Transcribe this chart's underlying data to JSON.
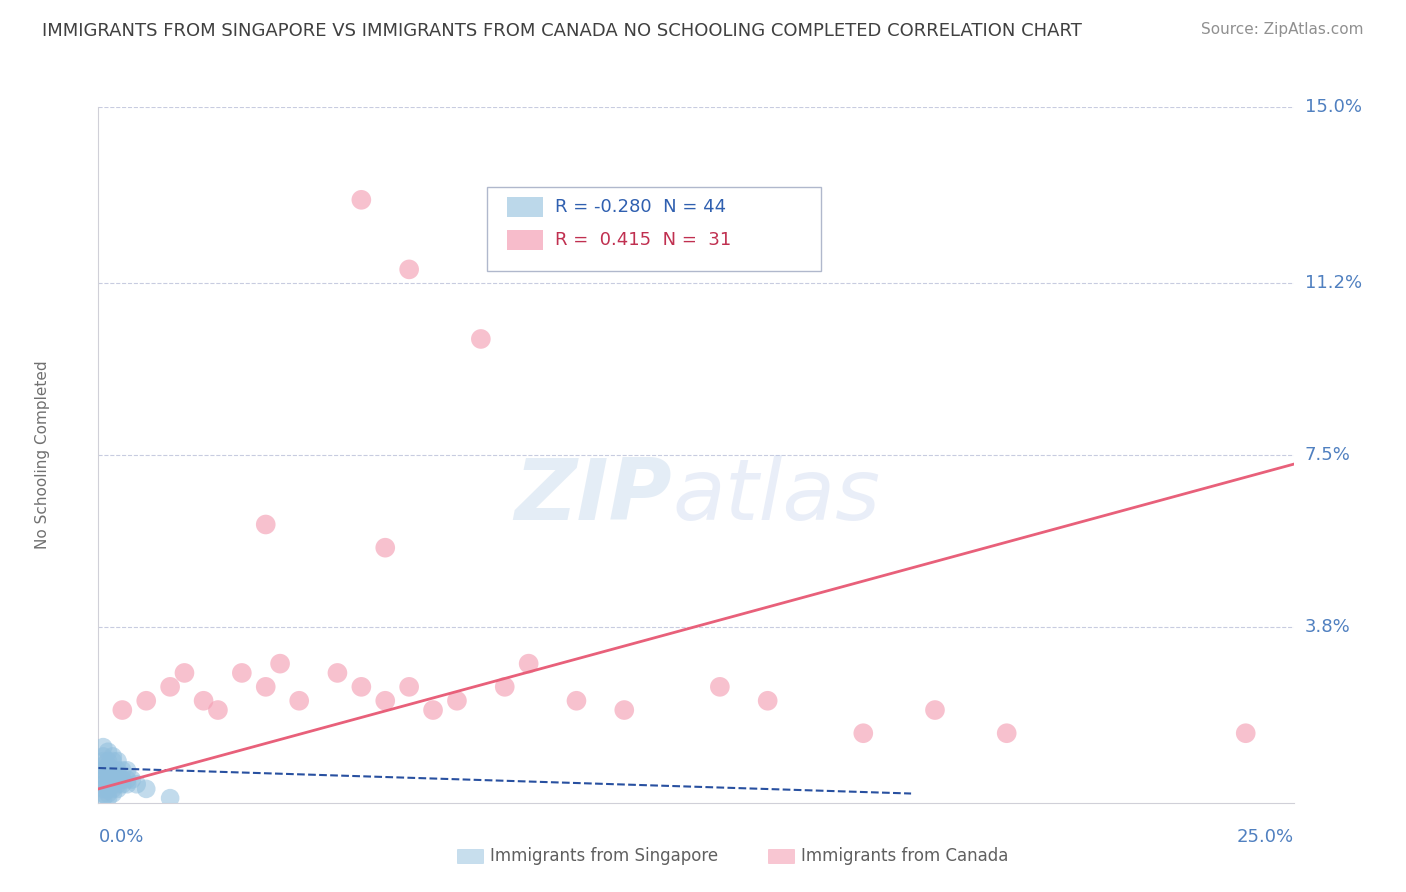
{
  "title": "IMMIGRANTS FROM SINGAPORE VS IMMIGRANTS FROM CANADA NO SCHOOLING COMPLETED CORRELATION CHART",
  "source": "Source: ZipAtlas.com",
  "ylabel": "No Schooling Completed",
  "xlim": [
    0.0,
    0.25
  ],
  "ylim": [
    0.0,
    0.15
  ],
  "ytick_labels": [
    "3.8%",
    "7.5%",
    "11.2%",
    "15.0%"
  ],
  "ytick_values": [
    0.038,
    0.075,
    0.112,
    0.15
  ],
  "sg_color": "#90bedd",
  "ca_color": "#f4a0b5",
  "background_color": "#ffffff",
  "grid_color": "#c8cce0",
  "title_color": "#404040",
  "tick_label_color": "#5080c0",
  "ylabel_color": "#707070",
  "sg_line_color": "#2850a0",
  "ca_line_color": "#e8607a",
  "sg_points": [
    [
      0.001,
      0.001
    ],
    [
      0.002,
      0.001
    ],
    [
      0.001,
      0.002
    ],
    [
      0.002,
      0.002
    ],
    [
      0.001,
      0.003
    ],
    [
      0.002,
      0.003
    ],
    [
      0.003,
      0.002
    ],
    [
      0.003,
      0.003
    ],
    [
      0.001,
      0.004
    ],
    [
      0.002,
      0.004
    ],
    [
      0.003,
      0.004
    ],
    [
      0.004,
      0.003
    ],
    [
      0.001,
      0.005
    ],
    [
      0.002,
      0.005
    ],
    [
      0.003,
      0.005
    ],
    [
      0.004,
      0.004
    ],
    [
      0.001,
      0.006
    ],
    [
      0.002,
      0.006
    ],
    [
      0.003,
      0.006
    ],
    [
      0.005,
      0.004
    ],
    [
      0.001,
      0.007
    ],
    [
      0.002,
      0.007
    ],
    [
      0.003,
      0.007
    ],
    [
      0.005,
      0.005
    ],
    [
      0.001,
      0.008
    ],
    [
      0.002,
      0.008
    ],
    [
      0.004,
      0.006
    ],
    [
      0.006,
      0.004
    ],
    [
      0.001,
      0.009
    ],
    [
      0.002,
      0.009
    ],
    [
      0.004,
      0.007
    ],
    [
      0.006,
      0.005
    ],
    [
      0.001,
      0.01
    ],
    [
      0.003,
      0.009
    ],
    [
      0.005,
      0.007
    ],
    [
      0.007,
      0.005
    ],
    [
      0.002,
      0.011
    ],
    [
      0.004,
      0.009
    ],
    [
      0.006,
      0.007
    ],
    [
      0.008,
      0.004
    ],
    [
      0.001,
      0.012
    ],
    [
      0.003,
      0.01
    ],
    [
      0.01,
      0.003
    ],
    [
      0.015,
      0.001
    ]
  ],
  "ca_points": [
    [
      0.005,
      0.02
    ],
    [
      0.01,
      0.022
    ],
    [
      0.015,
      0.025
    ],
    [
      0.018,
      0.028
    ],
    [
      0.022,
      0.022
    ],
    [
      0.025,
      0.02
    ],
    [
      0.03,
      0.028
    ],
    [
      0.035,
      0.025
    ],
    [
      0.038,
      0.03
    ],
    [
      0.042,
      0.022
    ],
    [
      0.05,
      0.028
    ],
    [
      0.055,
      0.025
    ],
    [
      0.06,
      0.022
    ],
    [
      0.065,
      0.025
    ],
    [
      0.07,
      0.02
    ],
    [
      0.075,
      0.022
    ],
    [
      0.085,
      0.025
    ],
    [
      0.09,
      0.03
    ],
    [
      0.1,
      0.022
    ],
    [
      0.11,
      0.02
    ],
    [
      0.13,
      0.025
    ],
    [
      0.14,
      0.022
    ],
    [
      0.16,
      0.015
    ],
    [
      0.175,
      0.02
    ],
    [
      0.19,
      0.015
    ],
    [
      0.24,
      0.015
    ],
    [
      0.06,
      0.055
    ],
    [
      0.035,
      0.06
    ],
    [
      0.065,
      0.115
    ],
    [
      0.08,
      0.1
    ],
    [
      0.055,
      0.13
    ]
  ],
  "sg_line_x": [
    0.0,
    0.17
  ],
  "sg_line_y": [
    0.0075,
    0.002
  ],
  "ca_line_x": [
    0.0,
    0.25
  ],
  "ca_line_y": [
    0.003,
    0.073
  ]
}
